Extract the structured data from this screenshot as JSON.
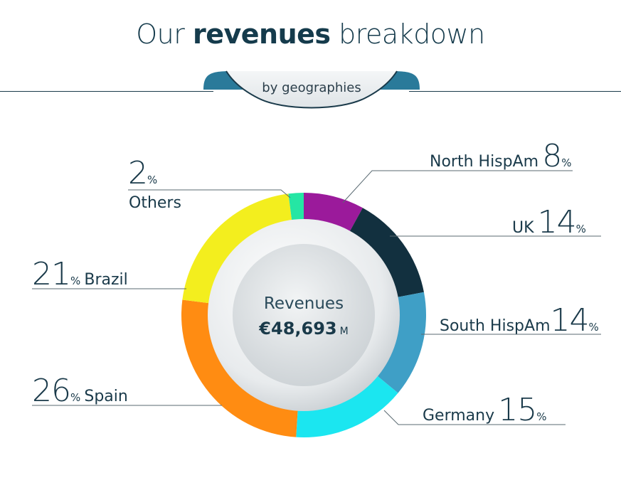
{
  "header": {
    "title_pre": "Our ",
    "title_bold": "revenues",
    "title_post": " breakdown",
    "subtitle": "by geographies"
  },
  "center": {
    "label": "Revenues",
    "value": "€48,693",
    "unit": "M"
  },
  "chart_data": {
    "type": "pie",
    "donut": true,
    "unit": "%",
    "slices": [
      {
        "label": "North HispAm",
        "value": 8,
        "color": "#9b1a9b"
      },
      {
        "label": "UK",
        "value": 14,
        "color": "#12303f"
      },
      {
        "label": "South HispAm",
        "value": 14,
        "color": "#3f9fc6"
      },
      {
        "label": "Germany",
        "value": 15,
        "color": "#1be6f0"
      },
      {
        "label": "Spain",
        "value": 26,
        "color": "#ff8c12"
      },
      {
        "label": "Brazil",
        "value": 21,
        "color": "#f3ee1e"
      },
      {
        "label": "Others",
        "value": 2,
        "color": "#25e6a4"
      }
    ],
    "pct_symbol": "%"
  }
}
